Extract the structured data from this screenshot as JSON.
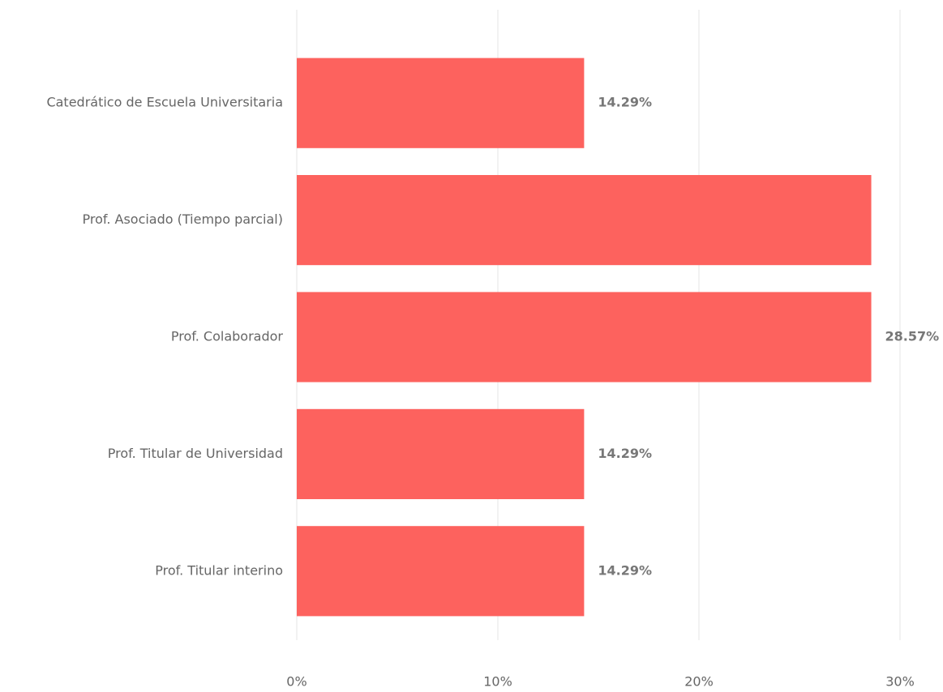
{
  "chart_data": {
    "type": "bar",
    "orientation": "horizontal",
    "categories": [
      "Catedrático de Escuela Universitaria",
      "Prof. Asociado (Tiempo parcial)",
      "Prof. Colaborador",
      "Prof. Titular de Universidad",
      "Prof. Titular interino"
    ],
    "values": [
      14.29,
      28.57,
      28.57,
      14.29,
      14.29
    ],
    "value_labels": [
      "14.29%",
      null,
      "28.57%",
      "14.29%",
      "14.29%"
    ],
    "color": "#fd625e",
    "xlim": [
      0,
      30
    ],
    "xticks": [
      {
        "value": 0,
        "label": "0%"
      },
      {
        "value": 10,
        "label": "10%"
      },
      {
        "value": 20,
        "label": "20%"
      },
      {
        "value": 30,
        "label": "30%"
      }
    ],
    "grid": true
  }
}
